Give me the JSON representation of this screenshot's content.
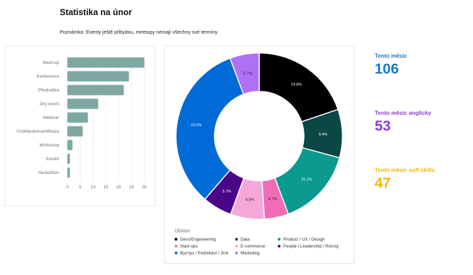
{
  "header": {
    "title": "Statistika na únor",
    "note": "Poznámka: Eventy ještě přibydou, meetupy nemají všechny své termíny"
  },
  "chart_data": [
    {
      "type": "bar",
      "orientation": "horizontal",
      "categories": [
        "Meet-up",
        "Konference",
        "Přednáška",
        "Jiný event",
        "Webinar",
        "Vzdělávání/certifikace",
        "Workshop",
        "Soutěž",
        "Hackathon"
      ],
      "values": [
        30,
        24,
        22,
        12,
        8,
        6,
        2,
        1,
        1
      ],
      "xlim": [
        0,
        30
      ],
      "xticks": [
        "0",
        "5",
        "10",
        "15",
        "20",
        "25",
        "30"
      ],
      "grid": true,
      "colors": {
        "bar": "#7fa8a3"
      }
    },
    {
      "type": "pie",
      "donut": true,
      "legend_title": "Oblast",
      "legend_position": "bottom",
      "slices": [
        {
          "name": "Devs/Engeneering",
          "value": 19.8,
          "label": "19.8%",
          "color": "#000000"
        },
        {
          "name": "Data",
          "value": 9.4,
          "label": "9.4%",
          "color": "#0b4744"
        },
        {
          "name": "Product / UX / Design",
          "value": 15.1,
          "label": "15.1%",
          "color": "#0c9a8f"
        },
        {
          "name": "Start-ups",
          "value": 4.7,
          "label": "4.7%",
          "color": "#f06cb5"
        },
        {
          "name": "E-commerce",
          "value": 6.6,
          "label": "6.6%",
          "color": "#f5a8d8"
        },
        {
          "name": "People / Leadership / Rozvoj",
          "value": 5.7,
          "label": "5.7%",
          "color": "#4b0589"
        },
        {
          "name": "Byznys / Podnikání / Jiné",
          "value": 33.0,
          "label": "33.0%",
          "color": "#006ad6"
        },
        {
          "name": "Marketing",
          "value": 5.7,
          "label": "5.7%",
          "color": "#b070f5"
        }
      ]
    }
  ],
  "stats": [
    {
      "label": "Tento měsíc",
      "value": "106",
      "color": "#1776d3"
    },
    {
      "label": "Tento měsíc anglicky",
      "value": "53",
      "color": "#8a3fd3"
    },
    {
      "label": "Tento měsíc soft skills",
      "value": "47",
      "color": "#f5b800"
    }
  ]
}
